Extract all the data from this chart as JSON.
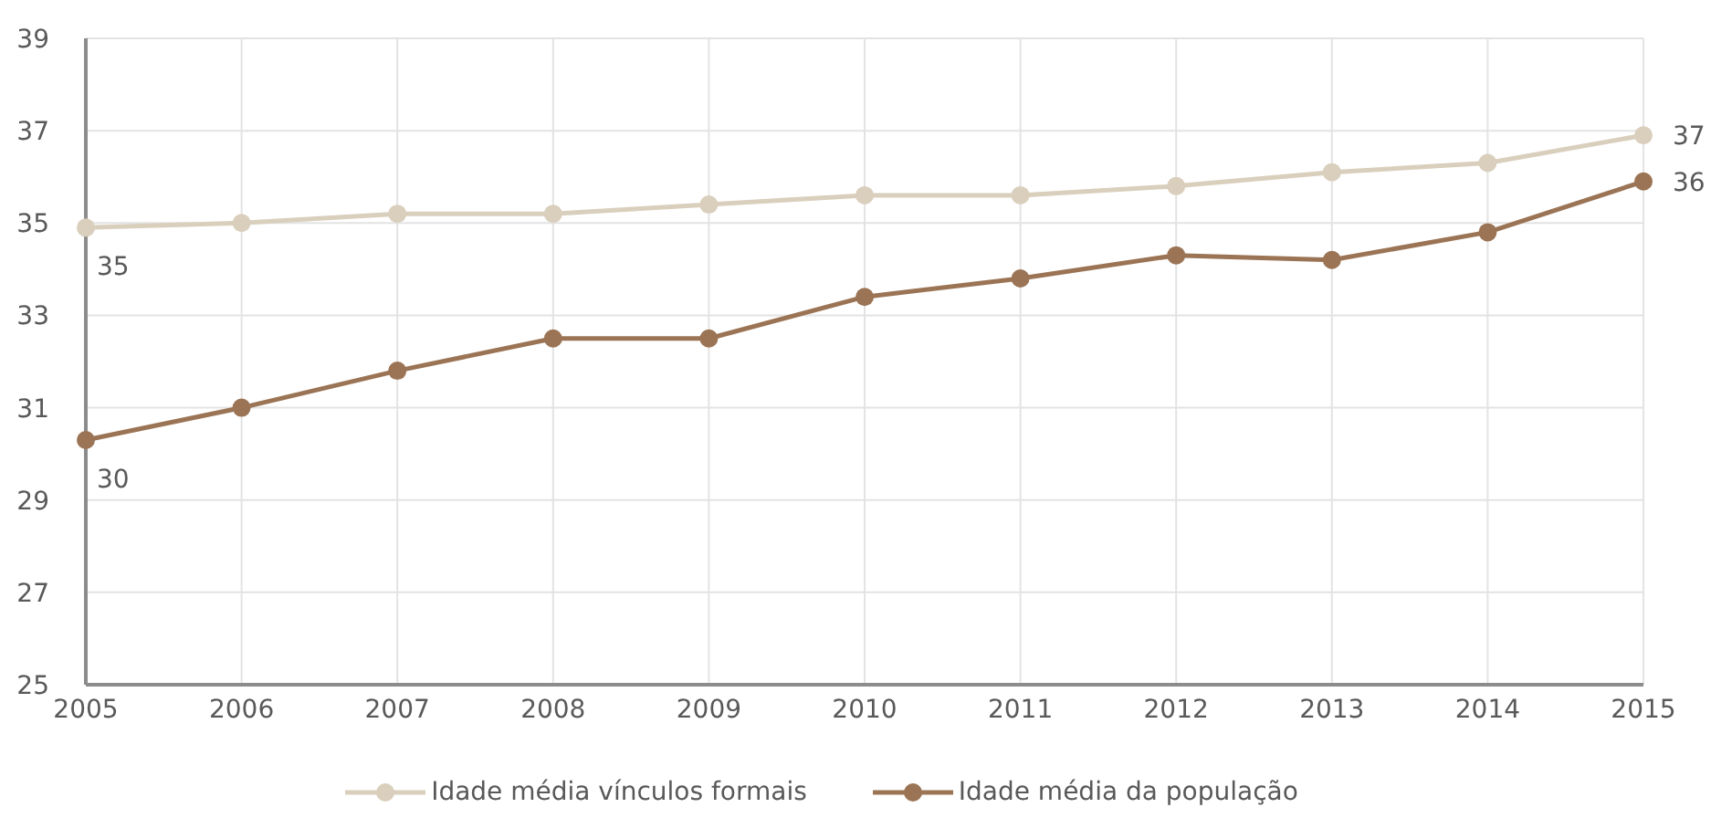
{
  "chart_data": {
    "type": "line",
    "categories": [
      "2005",
      "2006",
      "2007",
      "2008",
      "2009",
      "2010",
      "2011",
      "2012",
      "2013",
      "2014",
      "2015"
    ],
    "series": [
      {
        "name": "Idade média vínculos formais",
        "color": "#d9cfbc",
        "values": [
          34.9,
          35.0,
          35.2,
          35.2,
          35.4,
          35.6,
          35.6,
          35.8,
          36.1,
          36.3,
          36.9
        ],
        "value_labels": [
          "35",
          null,
          null,
          null,
          null,
          null,
          null,
          null,
          null,
          null,
          "37"
        ]
      },
      {
        "name": "Idade média da população",
        "color": "#9b7455",
        "values": [
          30.3,
          31.0,
          31.8,
          32.5,
          32.5,
          33.4,
          33.8,
          34.3,
          34.2,
          34.8,
          35.9
        ],
        "value_labels": [
          "30",
          null,
          null,
          null,
          null,
          null,
          null,
          null,
          null,
          null,
          "36"
        ]
      }
    ],
    "ylim": [
      25,
      39
    ],
    "yticks": [
      25,
      27,
      29,
      31,
      33,
      35,
      37,
      39
    ],
    "grid": true,
    "legend": "bottom",
    "marker": "circle",
    "line_style": "solid"
  }
}
